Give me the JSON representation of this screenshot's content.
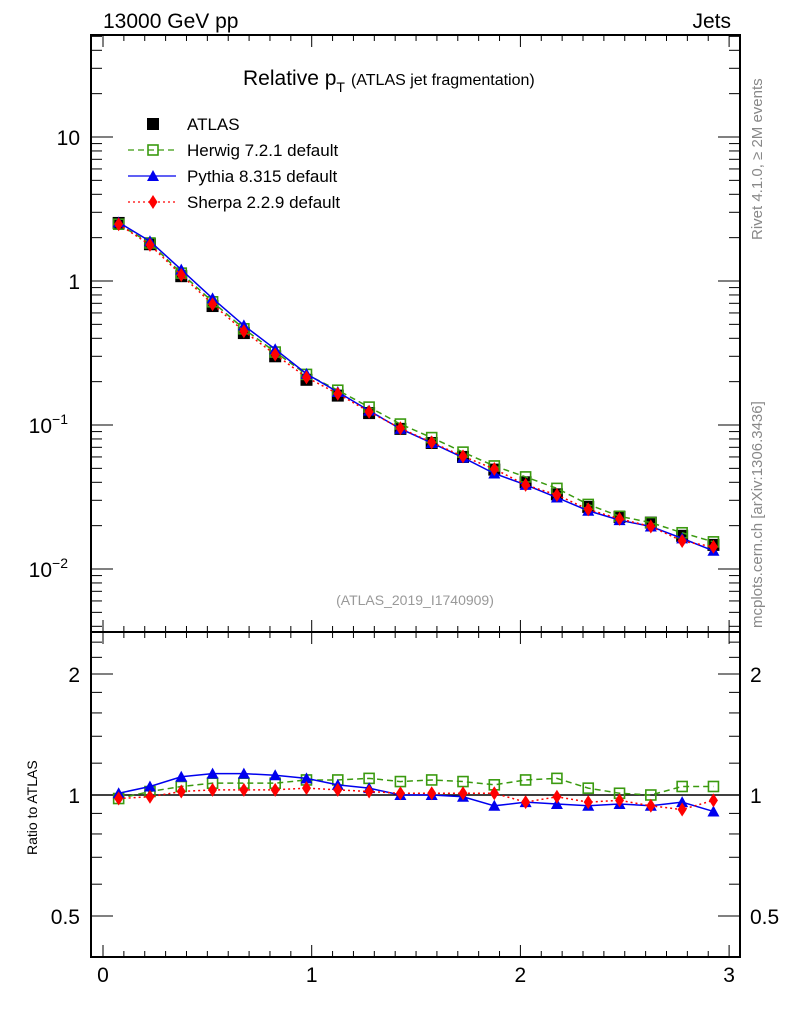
{
  "chart_data": {
    "type": "line",
    "header_left": "13000 GeV pp",
    "header_right": "Jets",
    "title": "Relative p",
    "title_sub": "T",
    "title_suffix": "(ATLAS jet fragmentation)",
    "watermark": "(ATLAS_2019_I1740909)",
    "side_label_top": "Rivet 4.1.0, ≥ 2M events",
    "side_label_bottom": "mcplots.cern.ch [arXiv:1306.3436]",
    "ratio_ylabel": "Ratio to ATLAS",
    "xlim": [
      0,
      3.05
    ],
    "ylim": [
      0.0037,
      51
    ],
    "yscale": "log",
    "ratio_ylim": [
      0.4,
      2.54
    ],
    "x_ticks": [
      "0",
      "1",
      "2",
      "3"
    ],
    "y_ticks": [
      {
        "v": 10,
        "label": "10"
      },
      {
        "v": 1,
        "label": "1"
      },
      {
        "v": 0.1,
        "label": "10",
        "exp": "−1"
      },
      {
        "v": 0.01,
        "label": "10",
        "exp": "−2"
      }
    ],
    "ratio_ticks": [
      {
        "v": 2,
        "label": "2"
      },
      {
        "v": 1,
        "label": "1"
      },
      {
        "v": 0.5,
        "label": "0.5"
      }
    ],
    "x": [
      0.075,
      0.225,
      0.375,
      0.525,
      0.675,
      0.825,
      0.975,
      1.125,
      1.275,
      1.425,
      1.575,
      1.725,
      1.875,
      2.025,
      2.175,
      2.325,
      2.475,
      2.625,
      2.775,
      2.925
    ],
    "data": {
      "name": "ATLAS",
      "color": "#000000",
      "values": [
        2.53,
        1.8,
        1.08,
        0.67,
        0.435,
        0.3,
        0.206,
        0.16,
        0.121,
        0.094,
        0.075,
        0.06,
        0.049,
        0.04,
        0.033,
        0.027,
        0.023,
        0.021,
        0.017,
        0.0147
      ]
    },
    "series": [
      {
        "name": "Herwig 7.2.1 default",
        "color": "#3a9a0f",
        "style": "dashed",
        "marker": "open-square",
        "ratio": [
          0.98,
          1.02,
          1.05,
          1.07,
          1.07,
          1.07,
          1.09,
          1.09,
          1.1,
          1.08,
          1.09,
          1.08,
          1.06,
          1.09,
          1.1,
          1.04,
          1.01,
          1.0,
          1.05,
          1.05
        ]
      },
      {
        "name": "Pythia 8.315 default",
        "color": "#0000ee",
        "style": "solid",
        "marker": "triangle",
        "ratio": [
          1.01,
          1.05,
          1.11,
          1.13,
          1.13,
          1.12,
          1.1,
          1.06,
          1.04,
          1.0,
          1.0,
          0.99,
          0.94,
          0.96,
          0.95,
          0.94,
          0.95,
          0.94,
          0.96,
          0.91
        ]
      },
      {
        "name": "Sherpa 2.2.9 default",
        "color": "#ff0000",
        "style": "dotted",
        "marker": "diamond",
        "ratio": [
          0.98,
          0.99,
          1.02,
          1.03,
          1.03,
          1.03,
          1.04,
          1.03,
          1.02,
          1.01,
          1.01,
          1.01,
          1.01,
          0.96,
          0.99,
          0.96,
          0.97,
          0.94,
          0.92,
          0.97
        ]
      }
    ],
    "legend_position": "top-left"
  }
}
